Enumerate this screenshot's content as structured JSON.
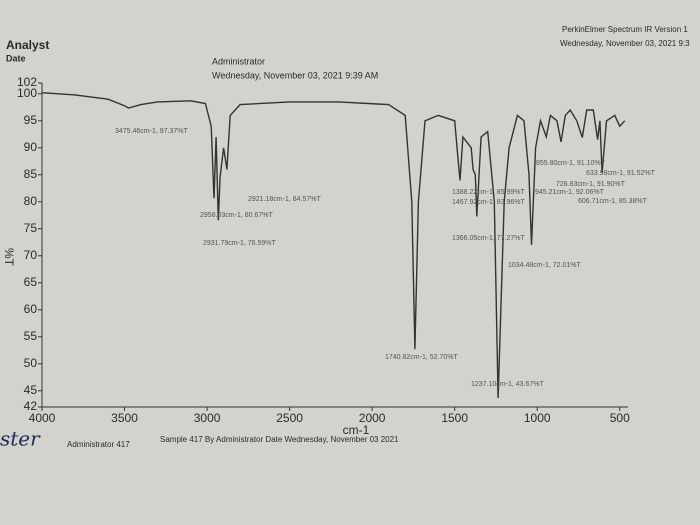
{
  "chart_data": {
    "type": "line",
    "header": {
      "analyst": "Analyst",
      "date": "Date",
      "operator": "Administrator",
      "datetime": "Wednesday, November 03, 2021 9:39 AM",
      "instrument": "PerkinElmer Spectrum IR Version 1",
      "instrument_date": "Wednesday, November 03, 2021 9:3"
    },
    "footer": {
      "operator": "Administrator 417",
      "sample": "Sample 417 By Administrator Date Wednesday, November 03 2021",
      "handwriting": "ster"
    },
    "x_label": "cm-1",
    "y_label": "%T",
    "xlim": [
      4000,
      450
    ],
    "xticks": [
      4000,
      3500,
      3000,
      2500,
      2000,
      1500,
      1000,
      500
    ],
    "ylim": [
      42,
      102
    ],
    "yticks": [
      42,
      45,
      50,
      55,
      60,
      65,
      70,
      75,
      80,
      85,
      90,
      95,
      100,
      102
    ],
    "series": [
      {
        "name": "Sample 417",
        "color": "#333333",
        "x": [
          4000,
          3800,
          3600,
          3500,
          3475.46,
          3400,
          3300,
          3100,
          3010,
          2975,
          2958.03,
          2945,
          2931.79,
          2921.18,
          2900,
          2880,
          2860,
          2800,
          2500,
          2200,
          1900,
          1800,
          1760,
          1740.82,
          1720,
          1680,
          1600,
          1500,
          1480,
          1467.92,
          1450,
          1400,
          1388.22,
          1375,
          1366.05,
          1340,
          1300,
          1260,
          1237.1,
          1200,
          1170,
          1120,
          1080,
          1050,
          1034.48,
          1010,
          980,
          945.21,
          920,
          880,
          855.8,
          830,
          800,
          760,
          726.83,
          700,
          660,
          633.98,
          620,
          606.71,
          580,
          530,
          500,
          470
        ],
        "values": [
          100.2,
          99.8,
          99.0,
          97.8,
          97.37,
          98.0,
          98.5,
          98.7,
          98.2,
          94,
          80.67,
          92,
          76.59,
          84.57,
          90,
          86,
          96,
          98,
          98.5,
          98.5,
          98,
          96,
          80,
          52.7,
          80,
          95,
          96,
          95,
          88,
          83.96,
          92,
          90,
          85.99,
          85,
          77.27,
          92,
          93,
          80,
          43.67,
          80,
          90,
          96,
          95,
          85,
          72.01,
          90,
          95,
          92.06,
          96,
          95,
          91.1,
          96,
          97,
          95,
          91.9,
          97,
          97,
          91.52,
          95,
          85.38,
          95,
          96,
          94,
          95
        ]
      }
    ],
    "annotations": [
      "3475.46cm-1, 97.37%T",
      "2921.18cm-1, 84.57%T",
      "2958.03cm-1, 80.67%T",
      "2931.79cm-1, 76.59%T",
      "1740.82cm-1, 52.70%T",
      "1237.10cm-1, 43.67%T",
      "1034.48cm-1, 72.01%T",
      "1366.05cm-1, 77.27%T",
      "1388.22cm-1, 85.99%T",
      "1467.92cm-1, 83.96%T",
      "945.21cm-1, 92.06%T",
      "855.80cm-1, 91.10%T",
      "633.98cm-1, 91.52%T",
      "726.83cm-1, 91.90%T",
      "606.71cm-1, 85.38%T"
    ]
  }
}
